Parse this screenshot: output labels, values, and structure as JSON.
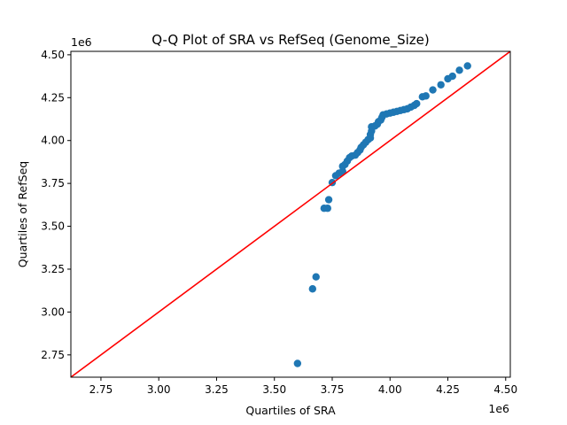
{
  "chart_data": {
    "type": "scatter",
    "title": "Q-Q Plot of SRA vs RefSeq (Genome_Size)",
    "xlabel": "Quartiles of SRA",
    "ylabel": "Quartiles of RefSeq",
    "x_offset_label": "1e6",
    "y_offset_label": "1e6",
    "xlim": [
      2.62,
      4.52
    ],
    "ylim": [
      2.62,
      4.52
    ],
    "x_ticks": [
      2.75,
      3.0,
      3.25,
      3.5,
      3.75,
      4.0,
      4.25,
      4.5
    ],
    "x_tick_labels": [
      "2.75",
      "3.00",
      "3.25",
      "3.50",
      "3.75",
      "4.00",
      "4.25",
      "4.50"
    ],
    "y_ticks": [
      2.75,
      3.0,
      3.25,
      3.5,
      3.75,
      4.0,
      4.25,
      4.5
    ],
    "y_tick_labels": [
      "2.75",
      "3.00",
      "3.25",
      "3.50",
      "3.75",
      "4.00",
      "4.25",
      "4.50"
    ],
    "grid": false,
    "marker_color": "#1f77b4",
    "reference_line_color": "#ff0000",
    "reference_line": [
      [
        2.62,
        2.62
      ],
      [
        4.52,
        4.52
      ]
    ],
    "points": [
      [
        3.6,
        2.7
      ],
      [
        3.665,
        3.135
      ],
      [
        3.68,
        3.205
      ],
      [
        3.715,
        3.605
      ],
      [
        3.73,
        3.605
      ],
      [
        3.735,
        3.655
      ],
      [
        3.75,
        3.755
      ],
      [
        3.765,
        3.795
      ],
      [
        3.78,
        3.81
      ],
      [
        3.795,
        3.82
      ],
      [
        3.795,
        3.85
      ],
      [
        3.805,
        3.86
      ],
      [
        3.815,
        3.88
      ],
      [
        3.825,
        3.9
      ],
      [
        3.835,
        3.91
      ],
      [
        3.85,
        3.915
      ],
      [
        3.86,
        3.93
      ],
      [
        3.87,
        3.945
      ],
      [
        3.875,
        3.96
      ],
      [
        3.885,
        3.975
      ],
      [
        3.895,
        3.99
      ],
      [
        3.905,
        4.005
      ],
      [
        3.915,
        4.015
      ],
      [
        3.915,
        4.035
      ],
      [
        3.92,
        4.055
      ],
      [
        3.92,
        4.08
      ],
      [
        3.935,
        4.085
      ],
      [
        3.945,
        4.095
      ],
      [
        3.95,
        4.11
      ],
      [
        3.96,
        4.12
      ],
      [
        3.965,
        4.135
      ],
      [
        3.97,
        4.15
      ],
      [
        3.985,
        4.155
      ],
      [
        4.0,
        4.16
      ],
      [
        4.015,
        4.165
      ],
      [
        4.03,
        4.17
      ],
      [
        4.045,
        4.175
      ],
      [
        4.06,
        4.18
      ],
      [
        4.075,
        4.185
      ],
      [
        4.09,
        4.195
      ],
      [
        4.105,
        4.205
      ],
      [
        4.115,
        4.215
      ],
      [
        4.14,
        4.255
      ],
      [
        4.155,
        4.26
      ],
      [
        4.185,
        4.295
      ],
      [
        4.22,
        4.325
      ],
      [
        4.25,
        4.36
      ],
      [
        4.27,
        4.375
      ],
      [
        4.3,
        4.41
      ],
      [
        4.335,
        4.435
      ]
    ]
  }
}
